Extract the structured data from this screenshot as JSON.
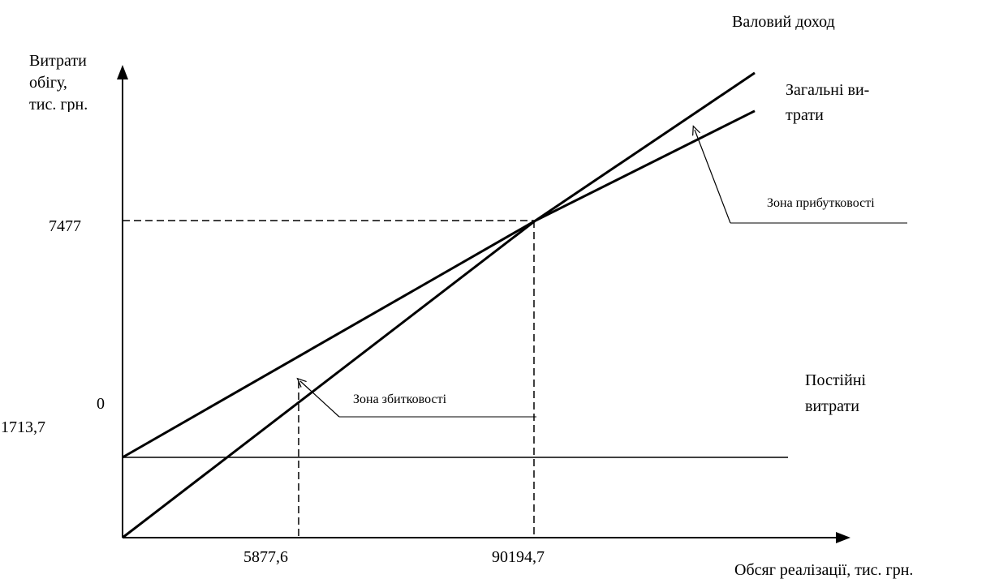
{
  "chart_data": {
    "type": "line",
    "title": "",
    "xlabel": "Обсяг  реалізації, тис. грн.",
    "ylabel_lines": [
      "Витрати",
      "обігу,",
      "тис. грн."
    ],
    "x_ticks": [
      {
        "label": "5877,6",
        "frac": 0.265
      },
      {
        "label": "90194,7",
        "frac": 0.62
      }
    ],
    "y_ticks": [
      {
        "label": "7477",
        "frac": 0.75
      },
      {
        "label": "0",
        "frac": 0.3
      },
      {
        "label": "1713,7",
        "frac": 0.19
      }
    ],
    "series": [
      {
        "name": "Валовий доход",
        "points": [
          [
            0,
            0
          ],
          [
            0.62,
            0.75
          ],
          [
            0.95,
            1.1
          ]
        ]
      },
      {
        "name": "Загальні витрати",
        "points": [
          [
            0,
            0.19
          ],
          [
            0.62,
            0.75
          ],
          [
            0.95,
            1.01
          ]
        ]
      },
      {
        "name": "Постійні витрати",
        "points": [
          [
            0,
            0.19
          ],
          [
            1.0,
            0.19
          ]
        ]
      }
    ],
    "series_labels": {
      "gross_income": "Валовий доход",
      "total_costs_1": "Загальні ви-",
      "total_costs_2": "трати",
      "fixed_costs_1": "Постійні",
      "fixed_costs_2": "витрати"
    },
    "annotations": {
      "profit_zone": "Зона прибутковості",
      "loss_zone": "Зона збитковості"
    },
    "break_even": {
      "x_label": "90194,7",
      "y_label": "7477"
    },
    "grid": false,
    "legend": "none"
  }
}
